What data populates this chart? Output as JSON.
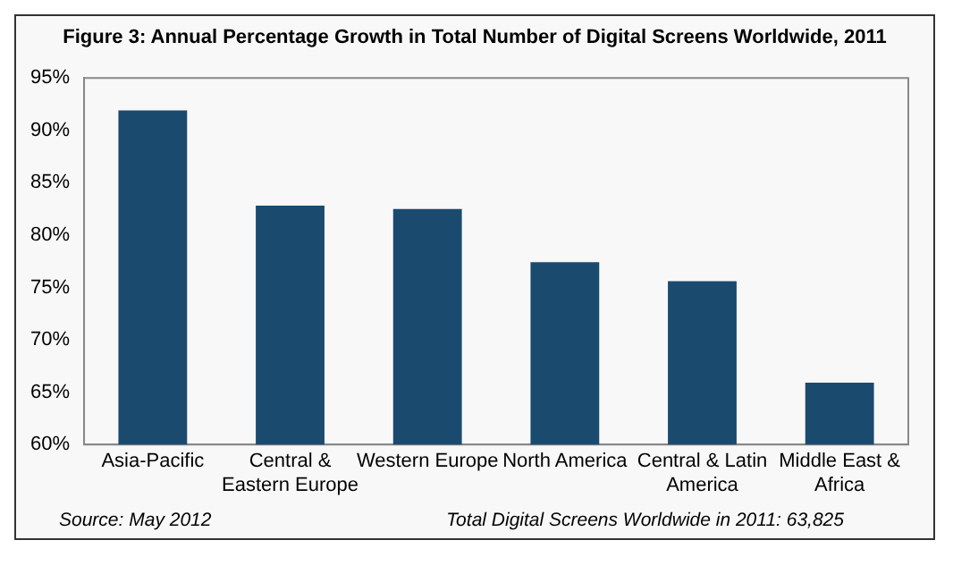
{
  "chart_data": {
    "type": "bar",
    "title": "Figure 3: Annual Percentage Growth in Total Number of Digital Screens Worldwide, 2011",
    "categories": [
      "Asia-Pacific",
      "Central & Eastern Europe",
      "Western Europe",
      "North America",
      "Central & Latin America",
      "Middle East & Africa"
    ],
    "values": [
      91.9,
      82.8,
      82.5,
      77.4,
      75.6,
      65.9
    ],
    "color": "#1b4a6f",
    "ylim": [
      60,
      95
    ],
    "yticks": [
      {
        "value": 60,
        "label": "60%"
      },
      {
        "value": 65,
        "label": "65%"
      },
      {
        "value": 70,
        "label": "70%"
      },
      {
        "value": 75,
        "label": "75%"
      },
      {
        "value": 80,
        "label": "80%"
      },
      {
        "value": 85,
        "label": "85%"
      },
      {
        "value": 90,
        "label": "90%"
      },
      {
        "value": 95,
        "label": "95%"
      }
    ],
    "grid": false,
    "legend": false,
    "annotations": [
      "Source: May 2012",
      "Total Digital Screens Worldwide in 2011: 63,825"
    ]
  }
}
